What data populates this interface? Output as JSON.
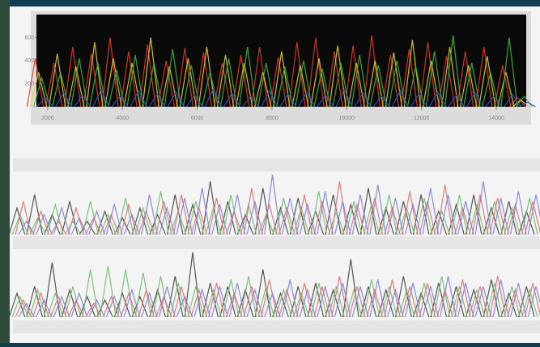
{
  "chart_data": [
    {
      "type": "line",
      "style": "spikes",
      "x": [
        1800,
        2300,
        2800,
        3300,
        3800,
        4300,
        4800,
        5300,
        5800,
        6300,
        6800,
        7300,
        7800,
        8300,
        8800,
        9300,
        9800,
        10300,
        10800,
        11300,
        11800,
        12300,
        12800,
        13300,
        13800,
        14300,
        14700
      ],
      "xlim": [
        1700,
        14800
      ],
      "ylim": [
        0,
        800
      ],
      "xticks": [
        2000,
        4000,
        6000,
        8000,
        10000,
        12000,
        14000
      ],
      "yticks": [
        200,
        400,
        600
      ],
      "background": "#0a0a0a",
      "series": [
        {
          "name": "red",
          "color": "#e03a1e",
          "values": [
            420,
            380,
            520,
            460,
            600,
            480,
            540,
            400,
            510,
            470,
            380,
            450,
            520,
            430,
            560,
            600,
            480,
            530,
            620,
            450,
            500,
            560,
            440,
            480,
            520,
            360,
            80
          ]
        },
        {
          "name": "yellow",
          "color": "#e8d020",
          "values": [
            300,
            460,
            350,
            560,
            420,
            380,
            600,
            350,
            420,
            520,
            450,
            380,
            300,
            480,
            360,
            420,
            530,
            380,
            400,
            470,
            580,
            400,
            520,
            360,
            440,
            300,
            60
          ]
        },
        {
          "name": "green",
          "color": "#3cb43c",
          "values": [
            250,
            300,
            420,
            380,
            320,
            450,
            380,
            500,
            360,
            300,
            420,
            520,
            380,
            350,
            400,
            330,
            380,
            450,
            360,
            400,
            350,
            480,
            620,
            380,
            300,
            600,
            90
          ]
        },
        {
          "name": "blue",
          "color": "#3050c8",
          "values": [
            80,
            120,
            100,
            150,
            90,
            140,
            110,
            130,
            100,
            160,
            120,
            90,
            140,
            110,
            130,
            100,
            150,
            120,
            90,
            140,
            110,
            130,
            100,
            120,
            90,
            110,
            40
          ]
        }
      ]
    },
    {
      "type": "line",
      "style": "spikes",
      "series": [
        {
          "name": "black",
          "color": "#444444",
          "values": [
            40,
            60,
            30,
            50,
            20,
            35,
            25,
            40,
            30,
            60,
            45,
            80,
            50,
            30,
            70,
            40,
            55,
            35,
            60,
            45,
            70,
            40,
            50,
            60,
            35,
            45,
            60,
            40,
            50,
            35
          ]
        },
        {
          "name": "green",
          "color": "#6fbf6f",
          "values": [
            30,
            25,
            45,
            20,
            50,
            30,
            55,
            40,
            65,
            35,
            50,
            40,
            60,
            45,
            30,
            55,
            40,
            65,
            35,
            50,
            45,
            60,
            40,
            55,
            35,
            60,
            45,
            50,
            40,
            55
          ]
        },
        {
          "name": "red",
          "color": "#e07070",
          "values": [
            50,
            35,
            20,
            40,
            25,
            30,
            45,
            35,
            50,
            60,
            40,
            55,
            35,
            70,
            45,
            40,
            60,
            50,
            80,
            45,
            55,
            40,
            65,
            50,
            75,
            40,
            60,
            55,
            45,
            50
          ]
        },
        {
          "name": "blue",
          "color": "#8080d8",
          "values": [
            20,
            30,
            40,
            25,
            35,
            45,
            30,
            60,
            40,
            55,
            70,
            45,
            60,
            50,
            90,
            55,
            45,
            65,
            50,
            60,
            75,
            55,
            45,
            70,
            60,
            50,
            80,
            55,
            65,
            60
          ]
        }
      ]
    },
    {
      "type": "line",
      "style": "spikes",
      "series": [
        {
          "name": "black",
          "color": "#444444",
          "values": [
            35,
            45,
            80,
            40,
            30,
            25,
            35,
            30,
            40,
            60,
            95,
            50,
            45,
            40,
            70,
            35,
            45,
            50,
            40,
            85,
            45,
            40,
            60,
            35,
            50,
            45,
            40,
            55,
            35,
            45
          ]
        },
        {
          "name": "green",
          "color": "#6fbf6f",
          "values": [
            30,
            40,
            35,
            45,
            70,
            75,
            70,
            65,
            60,
            50,
            45,
            40,
            55,
            60,
            45,
            40,
            35,
            50,
            45,
            40,
            55,
            45,
            40,
            50,
            60,
            45,
            40,
            50,
            45,
            40
          ]
        },
        {
          "name": "red",
          "color": "#e07070",
          "values": [
            25,
            35,
            30,
            25,
            20,
            30,
            35,
            40,
            30,
            45,
            40,
            50,
            35,
            45,
            55,
            40,
            50,
            45,
            60,
            45,
            40,
            55,
            45,
            50,
            40,
            55,
            45,
            60,
            40,
            50
          ]
        },
        {
          "name": "blue",
          "color": "#8080d8",
          "values": [
            20,
            25,
            30,
            35,
            25,
            30,
            40,
            35,
            45,
            30,
            40,
            45,
            50,
            40,
            35,
            55,
            40,
            45,
            50,
            45,
            55,
            40,
            50,
            45,
            60,
            50,
            45,
            55,
            50,
            45
          ]
        }
      ]
    }
  ]
}
